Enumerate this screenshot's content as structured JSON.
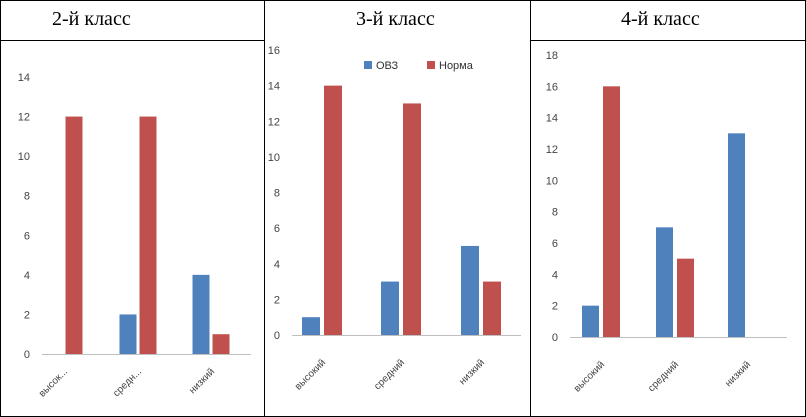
{
  "colors": {
    "ovz": "#4f81bd",
    "norma": "#c0504d",
    "grid": "#d9d9d9",
    "border": "#000000"
  },
  "chart_data": [
    {
      "type": "bar",
      "title": "2-й класс",
      "categories": [
        "высок...",
        "средн...",
        "низкий"
      ],
      "series": [
        {
          "name": "ОВЗ",
          "values": [
            0,
            2,
            4
          ]
        },
        {
          "name": "Норма",
          "values": [
            12,
            12,
            1
          ]
        }
      ],
      "ylim": [
        0,
        14
      ],
      "yticks": [
        0,
        2,
        4,
        6,
        8,
        10,
        12,
        14
      ],
      "legend": "none",
      "grid": false
    },
    {
      "type": "bar",
      "title": "3-й класс",
      "categories": [
        "высокий",
        "средний",
        "низкий"
      ],
      "series": [
        {
          "name": "ОВЗ",
          "values": [
            1,
            3,
            5
          ]
        },
        {
          "name": "Норма",
          "values": [
            14,
            13,
            3
          ]
        }
      ],
      "ylim": [
        0,
        16
      ],
      "yticks": [
        0,
        2,
        4,
        6,
        8,
        10,
        12,
        14,
        16
      ],
      "legend": "top",
      "grid": false
    },
    {
      "type": "bar",
      "title": "4-й класс",
      "categories": [
        "высокий",
        "средний",
        "низкий"
      ],
      "series": [
        {
          "name": "ОВЗ",
          "values": [
            2,
            7,
            13
          ]
        },
        {
          "name": "Норма",
          "values": [
            16,
            5,
            0
          ]
        }
      ],
      "ylim": [
        0,
        18
      ],
      "yticks": [
        0,
        2,
        4,
        6,
        8,
        10,
        12,
        14,
        16,
        18
      ],
      "legend": "none",
      "grid": false
    }
  ]
}
